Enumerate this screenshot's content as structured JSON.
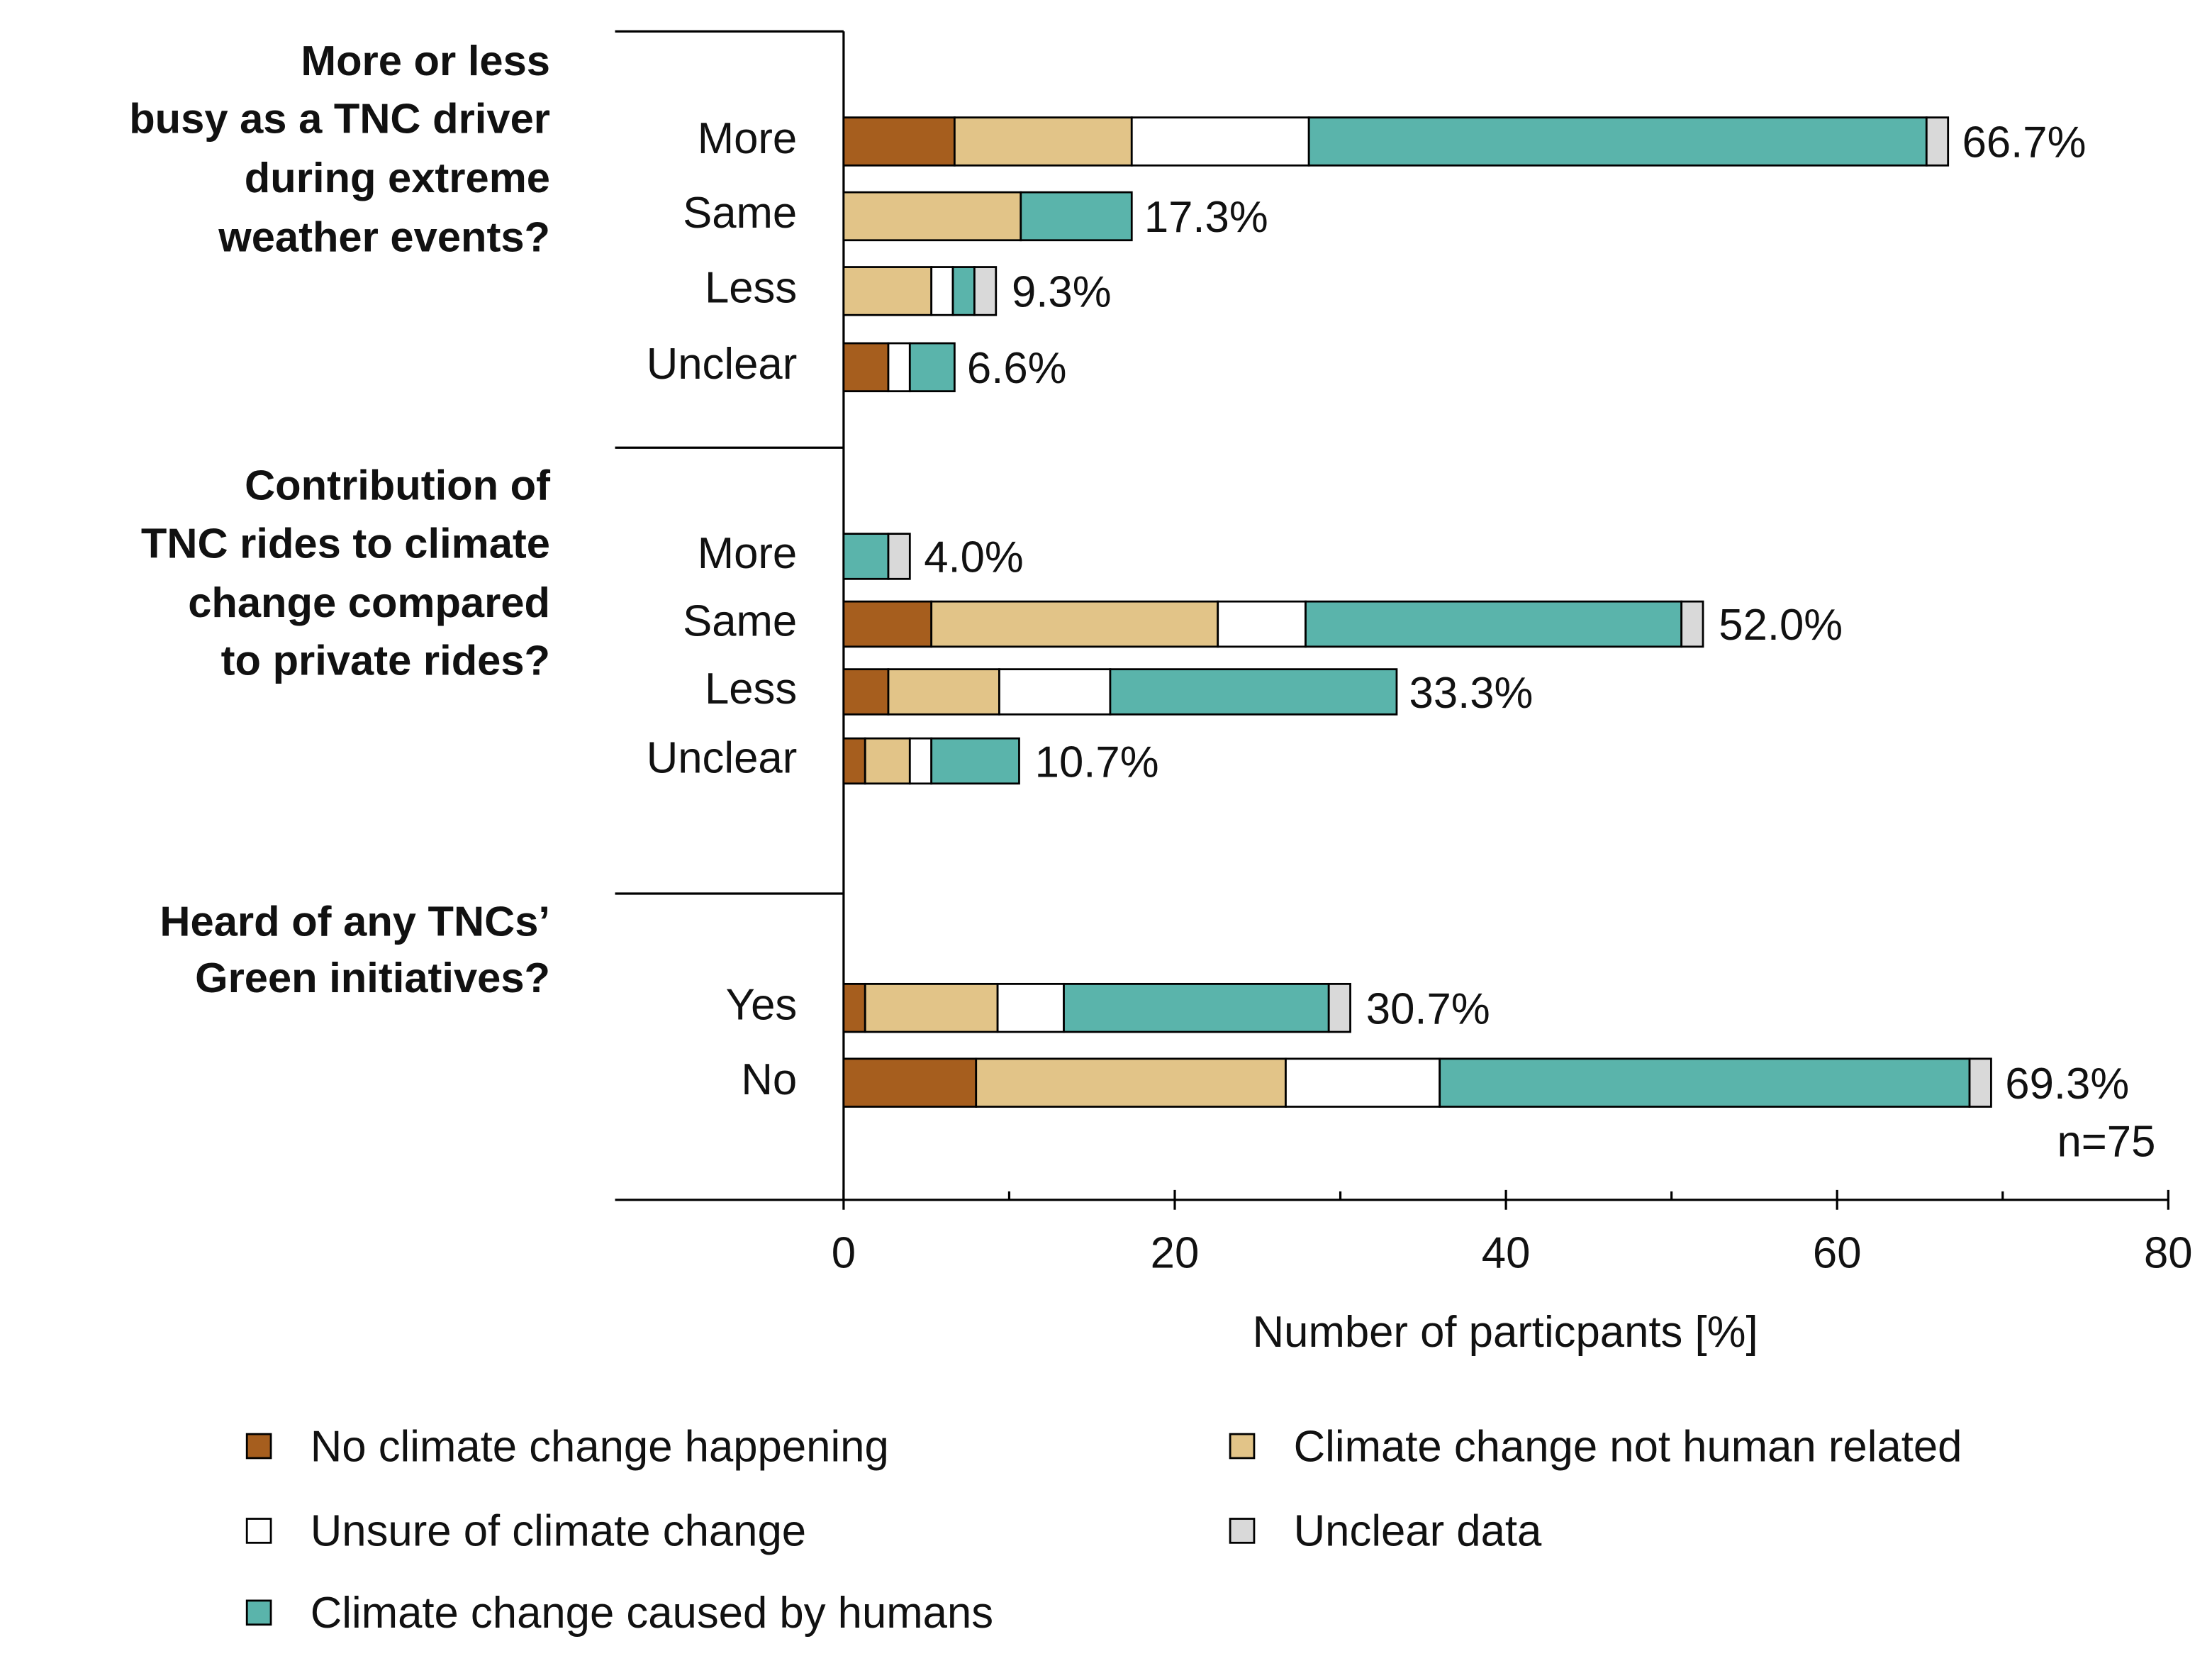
{
  "chart_data": {
    "type": "bar",
    "orientation": "horizontal",
    "stacked": true,
    "groups": [
      {
        "title": [
          "More or less",
          "busy as a TNC driver",
          "during extreme",
          "weather events?"
        ],
        "categories": [
          "More",
          "Same",
          "Less",
          "Unclear"
        ],
        "values": [
          66.7,
          17.3,
          9.3,
          6.6
        ],
        "value_labels": [
          "66.7%",
          "17.3%",
          "9.3%",
          "6.6%"
        ]
      },
      {
        "title": [
          "Contribution of",
          "TNC rides to climate",
          "change compared",
          "to private rides?"
        ],
        "categories": [
          "More",
          "Same",
          "Less",
          "Unclear"
        ],
        "values": [
          4.0,
          52.0,
          33.3,
          10.7
        ],
        "value_labels": [
          "4.0%",
          "52.0%",
          "33.3%",
          "10.7%"
        ]
      },
      {
        "title": [
          "Heard of any TNCs’",
          "Green initiatives?"
        ],
        "categories": [
          "Yes",
          "No"
        ],
        "values": [
          30.7,
          69.3
        ],
        "value_labels": [
          "30.7%",
          "69.3%"
        ]
      }
    ],
    "series": [
      {
        "name": "No climate change happening",
        "color": "#a65e1e",
        "values": [
          6.7,
          0,
          0,
          2.7,
          0,
          5.3,
          2.7,
          1.3,
          1.3,
          8.0
        ]
      },
      {
        "name": "Climate change not human related",
        "color": "#e2c488",
        "values": [
          10.7,
          10.7,
          5.3,
          0,
          0,
          17.3,
          6.7,
          2.7,
          8.0,
          18.7
        ]
      },
      {
        "name": "Unsure of climate change",
        "color": "#ffffff",
        "values": [
          10.7,
          0,
          1.3,
          1.3,
          0,
          5.3,
          6.7,
          1.3,
          4.0,
          9.3
        ]
      },
      {
        "name": "Climate change caused by humans",
        "color": "#5ab4ab",
        "values": [
          37.3,
          6.7,
          1.3,
          2.7,
          2.7,
          22.7,
          17.3,
          5.3,
          16.0,
          32.0
        ]
      },
      {
        "name": "Unclear data",
        "color": "#d9d9d9",
        "values": [
          1.3,
          0,
          1.3,
          0,
          1.3,
          1.3,
          0,
          0,
          1.3,
          1.3
        ]
      }
    ],
    "xlim": [
      0,
      80
    ],
    "xticks": [
      0,
      20,
      40,
      60,
      80
    ],
    "xminor_ticks": [
      10,
      30,
      50,
      70
    ],
    "xlabel": "Number of particpants [%]",
    "annotation": "n=75"
  }
}
